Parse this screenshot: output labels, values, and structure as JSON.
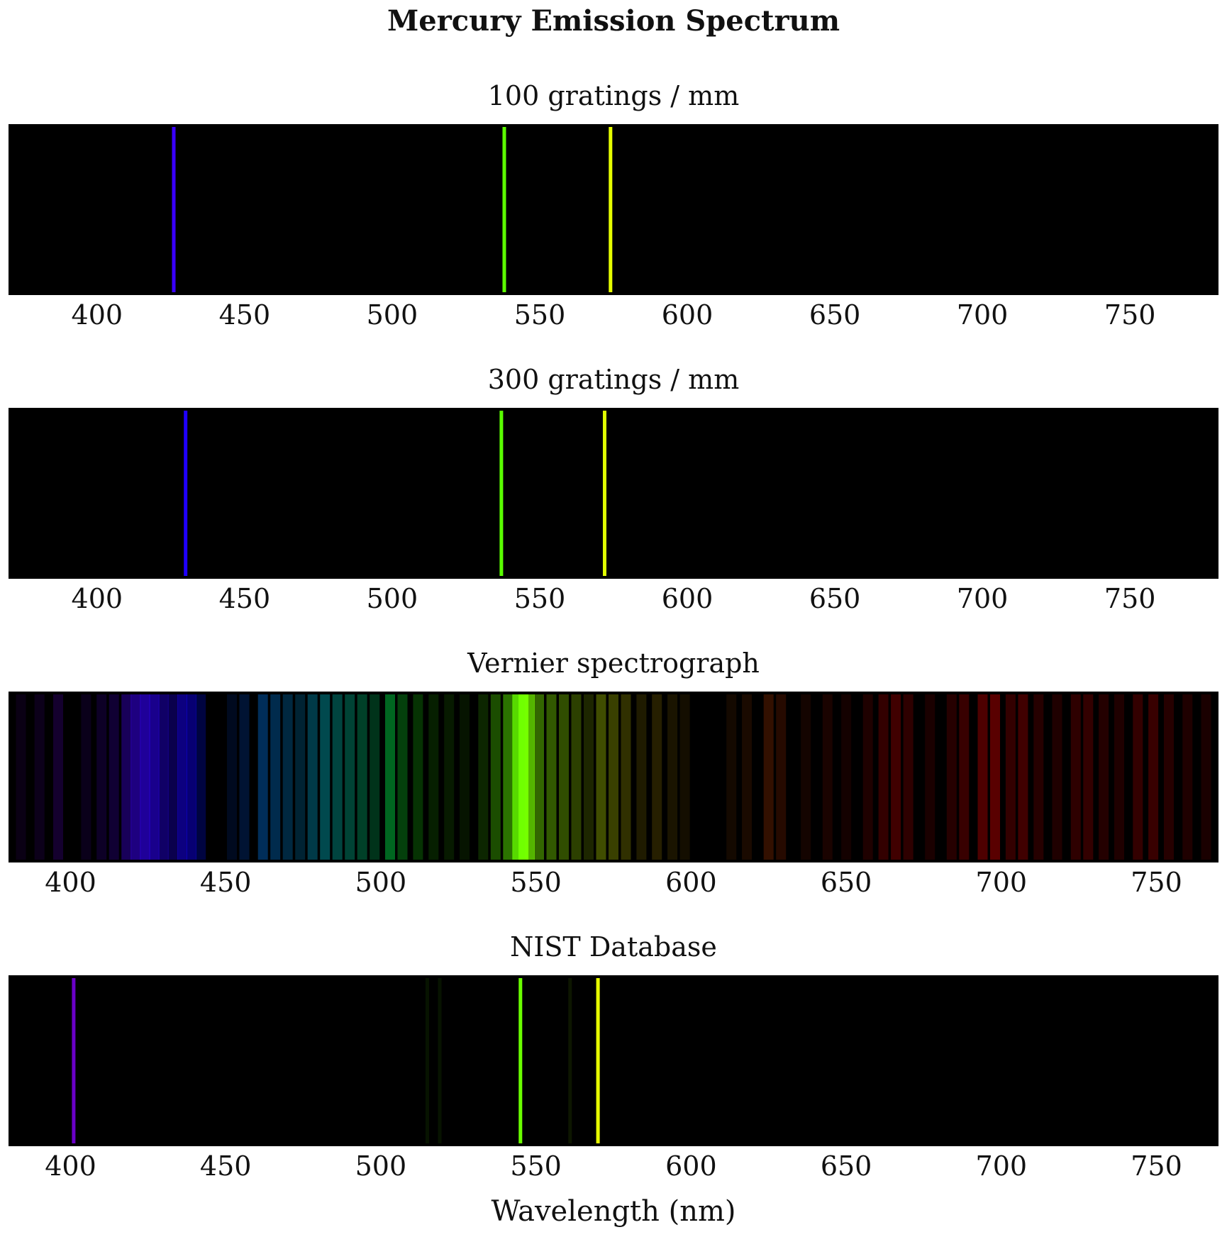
{
  "chart_data": {
    "type": "spectrum",
    "title": "Mercury Emission Spectrum",
    "xlabel": "Wavelength (nm)",
    "panels": [
      {
        "name": "100 gratings / mm",
        "xlim": [
          370,
          780
        ],
        "ticks": [
          400,
          450,
          500,
          550,
          600,
          650,
          700,
          750
        ],
        "lines": [
          {
            "wavelength": 426,
            "color": "#3a00ff",
            "intensity": 1.0
          },
          {
            "wavelength": 538,
            "color": "#5cff00",
            "intensity": 1.0
          },
          {
            "wavelength": 574,
            "color": "#e6ff00",
            "intensity": 1.0
          }
        ]
      },
      {
        "name": "300 gratings / mm",
        "xlim": [
          370,
          780
        ],
        "ticks": [
          400,
          450,
          500,
          550,
          600,
          650,
          700,
          750
        ],
        "lines": [
          {
            "wavelength": 430,
            "color": "#1f00ff",
            "intensity": 1.0
          },
          {
            "wavelength": 537,
            "color": "#59ff00",
            "intensity": 1.0
          },
          {
            "wavelength": 572,
            "color": "#e0ff00",
            "intensity": 1.0
          }
        ]
      },
      {
        "name": "Vernier spectrograph",
        "xlim": [
          380,
          770
        ],
        "ticks": [
          400,
          450,
          500,
          550,
          600,
          650,
          700,
          750
        ],
        "lines": [
          {
            "wavelength": 384,
            "color": "#7a00ff",
            "intensity": 0.08
          },
          {
            "wavelength": 390,
            "color": "#7a00ff",
            "intensity": 0.1
          },
          {
            "wavelength": 396,
            "color": "#7000ff",
            "intensity": 0.18
          },
          {
            "wavelength": 405,
            "color": "#6000ff",
            "intensity": 0.1
          },
          {
            "wavelength": 410,
            "color": "#5a00ff",
            "intensity": 0.15
          },
          {
            "wavelength": 414,
            "color": "#5000ff",
            "intensity": 0.2
          },
          {
            "wavelength": 418,
            "color": "#4400ff",
            "intensity": 0.35
          },
          {
            "wavelength": 421,
            "color": "#3c00ff",
            "intensity": 0.5
          },
          {
            "wavelength": 424,
            "color": "#3400ff",
            "intensity": 0.6
          },
          {
            "wavelength": 427,
            "color": "#2e00ff",
            "intensity": 0.55
          },
          {
            "wavelength": 430,
            "color": "#2800ff",
            "intensity": 0.4
          },
          {
            "wavelength": 433,
            "color": "#2000ff",
            "intensity": 0.3
          },
          {
            "wavelength": 436,
            "color": "#1800ff",
            "intensity": 0.5
          },
          {
            "wavelength": 439,
            "color": "#1000ff",
            "intensity": 0.45
          },
          {
            "wavelength": 442,
            "color": "#0010ff",
            "intensity": 0.25
          },
          {
            "wavelength": 452,
            "color": "#0050ff",
            "intensity": 0.12
          },
          {
            "wavelength": 456,
            "color": "#0060ff",
            "intensity": 0.2
          },
          {
            "wavelength": 462,
            "color": "#0080ff",
            "intensity": 0.35
          },
          {
            "wavelength": 466,
            "color": "#0090ff",
            "intensity": 0.3
          },
          {
            "wavelength": 470,
            "color": "#00a0ff",
            "intensity": 0.25
          },
          {
            "wavelength": 474,
            "color": "#00b0ff",
            "intensity": 0.2
          },
          {
            "wavelength": 478,
            "color": "#00c0f0",
            "intensity": 0.3
          },
          {
            "wavelength": 482,
            "color": "#00d0e0",
            "intensity": 0.35
          },
          {
            "wavelength": 486,
            "color": "#00e0d0",
            "intensity": 0.3
          },
          {
            "wavelength": 490,
            "color": "#00f0c0",
            "intensity": 0.28
          },
          {
            "wavelength": 494,
            "color": "#00ffa0",
            "intensity": 0.25
          },
          {
            "wavelength": 498,
            "color": "#00ff80",
            "intensity": 0.2
          },
          {
            "wavelength": 503,
            "color": "#00ff50",
            "intensity": 0.4
          },
          {
            "wavelength": 507,
            "color": "#10ff30",
            "intensity": 0.25
          },
          {
            "wavelength": 512,
            "color": "#20ff10",
            "intensity": 0.2
          },
          {
            "wavelength": 517,
            "color": "#30ff00",
            "intensity": 0.12
          },
          {
            "wavelength": 522,
            "color": "#40ff00",
            "intensity": 0.1
          },
          {
            "wavelength": 527,
            "color": "#48ff00",
            "intensity": 0.08
          },
          {
            "wavelength": 533,
            "color": "#50ff00",
            "intensity": 0.15
          },
          {
            "wavelength": 537,
            "color": "#58ff00",
            "intensity": 0.3
          },
          {
            "wavelength": 541,
            "color": "#60ff00",
            "intensity": 0.45
          },
          {
            "wavelength": 544,
            "color": "#66ff00",
            "intensity": 0.85
          },
          {
            "wavelength": 546,
            "color": "#70ff00",
            "intensity": 1.0
          },
          {
            "wavelength": 548,
            "color": "#78ff00",
            "intensity": 0.7
          },
          {
            "wavelength": 551,
            "color": "#80ff00",
            "intensity": 0.4
          },
          {
            "wavelength": 555,
            "color": "#90ff00",
            "intensity": 0.35
          },
          {
            "wavelength": 559,
            "color": "#a0ff00",
            "intensity": 0.3
          },
          {
            "wavelength": 563,
            "color": "#b0ff00",
            "intensity": 0.25
          },
          {
            "wavelength": 567,
            "color": "#c0ff00",
            "intensity": 0.15
          },
          {
            "wavelength": 571,
            "color": "#d4ff00",
            "intensity": 0.3
          },
          {
            "wavelength": 575,
            "color": "#e4ff00",
            "intensity": 0.25
          },
          {
            "wavelength": 579,
            "color": "#f0f000",
            "intensity": 0.2
          },
          {
            "wavelength": 584,
            "color": "#ffe000",
            "intensity": 0.12
          },
          {
            "wavelength": 589,
            "color": "#ffd000",
            "intensity": 0.15
          },
          {
            "wavelength": 594,
            "color": "#ffc000",
            "intensity": 0.1
          },
          {
            "wavelength": 598,
            "color": "#ffb000",
            "intensity": 0.08
          },
          {
            "wavelength": 613,
            "color": "#ff7000",
            "intensity": 0.08
          },
          {
            "wavelength": 618,
            "color": "#ff6000",
            "intensity": 0.1
          },
          {
            "wavelength": 625,
            "color": "#ff5000",
            "intensity": 0.2
          },
          {
            "wavelength": 629,
            "color": "#ff4000",
            "intensity": 0.15
          },
          {
            "wavelength": 637,
            "color": "#ff3000",
            "intensity": 0.08
          },
          {
            "wavelength": 644,
            "color": "#ff2000",
            "intensity": 0.1
          },
          {
            "wavelength": 650,
            "color": "#ff1000",
            "intensity": 0.08
          },
          {
            "wavelength": 657,
            "color": "#ff0800",
            "intensity": 0.12
          },
          {
            "wavelength": 662,
            "color": "#ff0000",
            "intensity": 0.2
          },
          {
            "wavelength": 666,
            "color": "#ff0000",
            "intensity": 0.25
          },
          {
            "wavelength": 670,
            "color": "#ff0000",
            "intensity": 0.18
          },
          {
            "wavelength": 677,
            "color": "#ff0000",
            "intensity": 0.1
          },
          {
            "wavelength": 684,
            "color": "#ff0000",
            "intensity": 0.15
          },
          {
            "wavelength": 688,
            "color": "#ff0000",
            "intensity": 0.22
          },
          {
            "wavelength": 694,
            "color": "#ff0000",
            "intensity": 0.3
          },
          {
            "wavelength": 698,
            "color": "#ff0000",
            "intensity": 0.35
          },
          {
            "wavelength": 703,
            "color": "#ff0000",
            "intensity": 0.2
          },
          {
            "wavelength": 707,
            "color": "#ff0000",
            "intensity": 0.25
          },
          {
            "wavelength": 712,
            "color": "#ff0000",
            "intensity": 0.15
          },
          {
            "wavelength": 718,
            "color": "#ff0000",
            "intensity": 0.12
          },
          {
            "wavelength": 724,
            "color": "#ff0000",
            "intensity": 0.18
          },
          {
            "wavelength": 728,
            "color": "#ff0000",
            "intensity": 0.2
          },
          {
            "wavelength": 733,
            "color": "#ff0000",
            "intensity": 0.14
          },
          {
            "wavelength": 738,
            "color": "#ff0000",
            "intensity": 0.12
          },
          {
            "wavelength": 744,
            "color": "#ff0000",
            "intensity": 0.2
          },
          {
            "wavelength": 749,
            "color": "#ff0000",
            "intensity": 0.22
          },
          {
            "wavelength": 754,
            "color": "#ff0000",
            "intensity": 0.15
          },
          {
            "wavelength": 760,
            "color": "#ff0000",
            "intensity": 0.12
          },
          {
            "wavelength": 766,
            "color": "#ff0000",
            "intensity": 0.1
          }
        ]
      },
      {
        "name": "NIST Database",
        "xlim": [
          380,
          770
        ],
        "ticks": [
          400,
          450,
          500,
          550,
          600,
          650,
          700,
          750
        ],
        "lines": [
          {
            "wavelength": 401,
            "color": "#6a00c8",
            "intensity": 1.0
          },
          {
            "wavelength": 515,
            "color": "#1a4a00",
            "intensity": 0.25
          },
          {
            "wavelength": 519,
            "color": "#1a4a00",
            "intensity": 0.25
          },
          {
            "wavelength": 545,
            "color": "#6aff00",
            "intensity": 1.0
          },
          {
            "wavelength": 561,
            "color": "#2a4a00",
            "intensity": 0.3
          },
          {
            "wavelength": 570,
            "color": "#e8ff00",
            "intensity": 1.0
          }
        ]
      }
    ]
  }
}
